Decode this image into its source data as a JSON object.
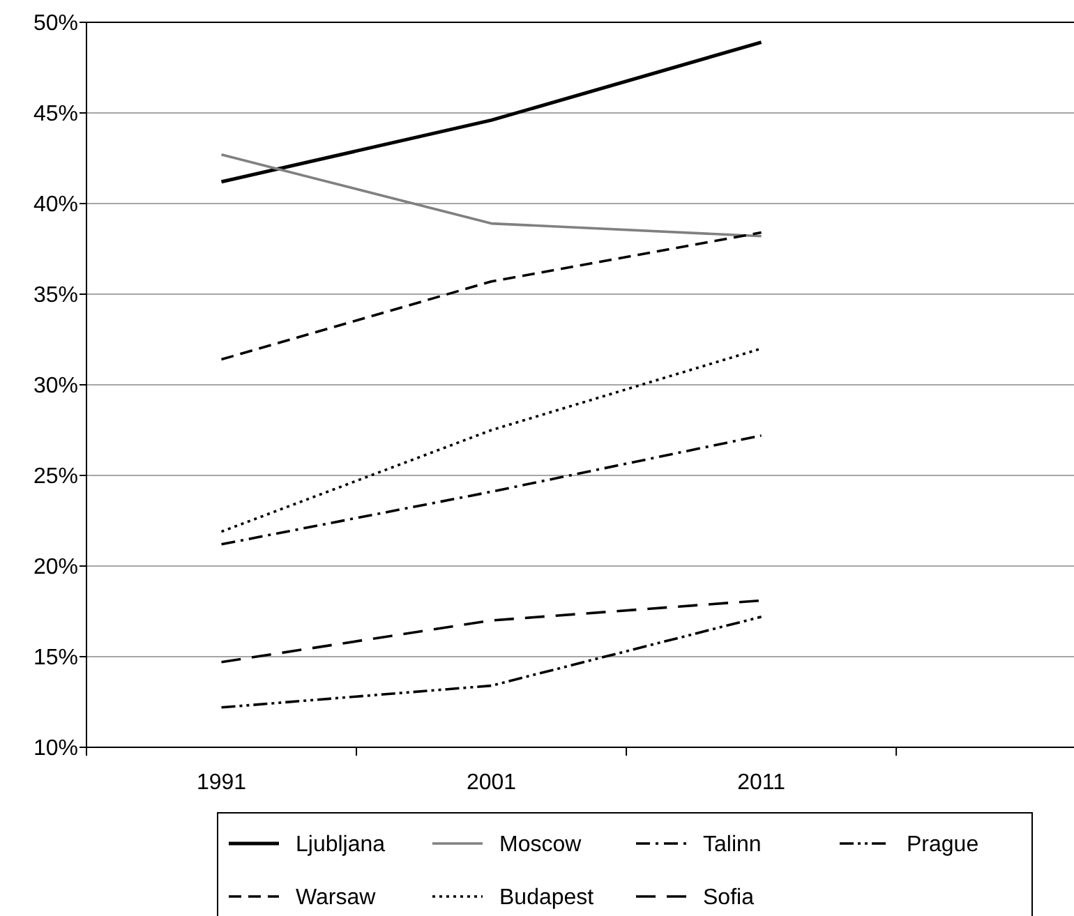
{
  "chart_data": {
    "type": "line",
    "categories": [
      "1991",
      "2001",
      "2011"
    ],
    "series": [
      {
        "name": "Ljubljana",
        "color": "#000000",
        "line_style": "solid",
        "values": [
          41.2,
          44.6,
          48.9
        ]
      },
      {
        "name": "Moscow",
        "color": "#808080",
        "line_style": "solid",
        "values": [
          42.7,
          38.9,
          38.2
        ]
      },
      {
        "name": "Talinn",
        "color": "#000000",
        "line_style": "dashdot",
        "values": [
          21.2,
          24.1,
          27.2
        ]
      },
      {
        "name": "Prague",
        "color": "#000000",
        "line_style": "dashdotdot",
        "values": [
          12.2,
          13.4,
          17.2
        ]
      },
      {
        "name": "Warsaw",
        "color": "#000000",
        "line_style": "dashed",
        "values": [
          31.4,
          35.7,
          38.4
        ]
      },
      {
        "name": "Budapest",
        "color": "#000000",
        "line_style": "dotted",
        "values": [
          21.9,
          27.5,
          32.0
        ]
      },
      {
        "name": "Sofia",
        "color": "#000000",
        "line_style": "longdash",
        "values": [
          14.7,
          17.0,
          18.1
        ]
      }
    ],
    "ylim": [
      10,
      50
    ],
    "yticks": [
      {
        "value": 10,
        "label": "10%"
      },
      {
        "value": 15,
        "label": "15%"
      },
      {
        "value": 20,
        "label": "20%"
      },
      {
        "value": 25,
        "label": "25%"
      },
      {
        "value": 30,
        "label": "30%"
      },
      {
        "value": 35,
        "label": "35%"
      },
      {
        "value": 40,
        "label": "40%"
      },
      {
        "value": 45,
        "label": "45%"
      },
      {
        "value": 50,
        "label": "50%"
      }
    ],
    "grid": "y",
    "legend": "bottom",
    "marker": "none"
  }
}
